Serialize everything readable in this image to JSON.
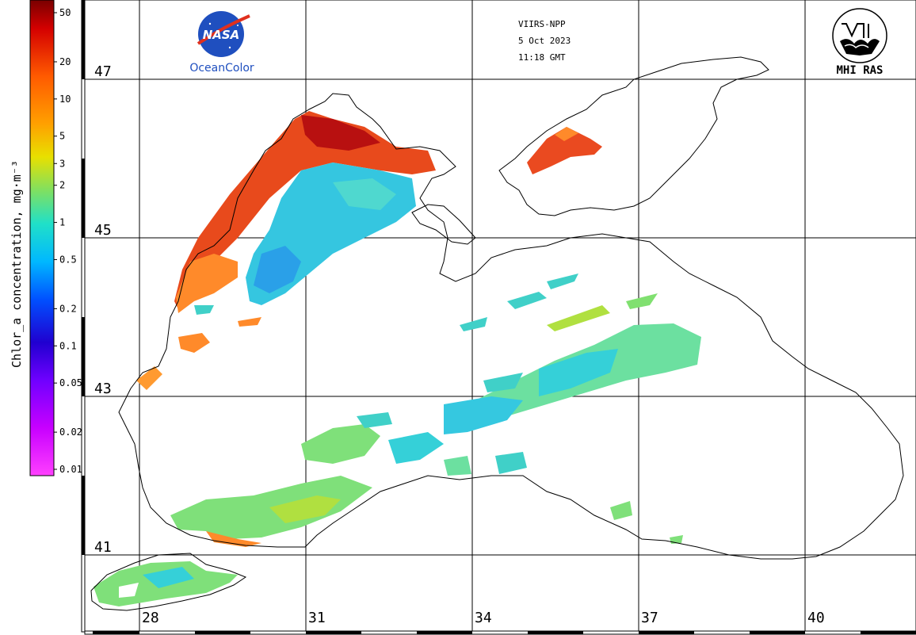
{
  "header": {
    "sensor": "VIIRS-NPP",
    "date": "5 Oct 2023",
    "time": "11:18 GMT"
  },
  "logos": {
    "left_label": "OceanColor",
    "left_mark": "NASA",
    "right_label": "MHI RAS"
  },
  "colorbar": {
    "title": "Chlor_a concentration, mg·m⁻³",
    "ticks": [
      "50",
      "20",
      "10",
      "5",
      "3",
      "2",
      "1",
      "0.5",
      "0.2",
      "0.1",
      "0.05",
      "0.02",
      "0.01"
    ],
    "colors": [
      "#8b0000",
      "#ff2a00",
      "#ff8c00",
      "#ffd400",
      "#b0e040",
      "#40e0b0",
      "#00c8ff",
      "#0050ff",
      "#2000c0",
      "#8000ff",
      "#d000ff",
      "#ff40ff"
    ]
  },
  "grid": {
    "latitudes": [
      "47",
      "45",
      "43",
      "41"
    ],
    "longitudes": [
      "28",
      "31",
      "34",
      "37",
      "40"
    ]
  },
  "colors": {
    "high": "#e0301e",
    "mid": "#ff8c1a",
    "low": "#35d0d8",
    "green": "#7fe07a",
    "coast": "#000000"
  }
}
